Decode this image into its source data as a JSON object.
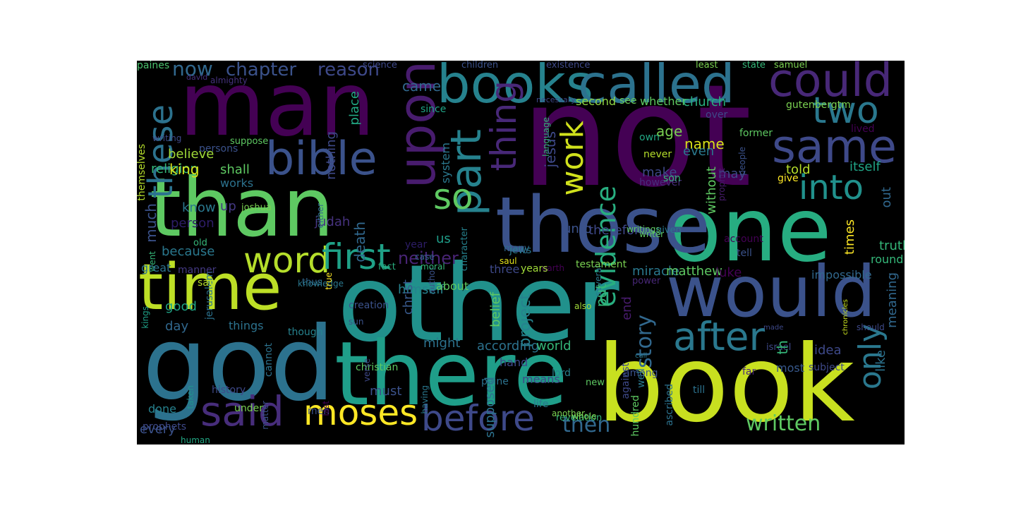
{
  "palette": {
    "background": "#000000",
    "page": "#ffffff",
    "yellow": "#c8e020",
    "lime": "#8fd744",
    "green": "#35b779",
    "teal": "#21918c",
    "blue": "#31688e",
    "indigo": "#443a83",
    "purple": "#440154"
  },
  "words": [
    {
      "t": "not",
      "c": "#440154"
    },
    {
      "t": "other",
      "c": "#21918c"
    },
    {
      "t": "there",
      "c": "#1f9e89"
    },
    {
      "t": "one",
      "c": "#27ad81"
    },
    {
      "t": "book",
      "c": "#c8e020"
    },
    {
      "t": "god",
      "c": "#2c728e"
    },
    {
      "t": "than",
      "c": "#5ec962"
    },
    {
      "t": "man",
      "c": "#440154"
    },
    {
      "t": "those",
      "c": "#3b528b"
    },
    {
      "t": "would",
      "c": "#3b528b"
    },
    {
      "t": "time",
      "c": "#bddf26"
    },
    {
      "t": "books",
      "c": "#26828e"
    },
    {
      "t": "called",
      "c": "#2c728e"
    },
    {
      "t": "upon",
      "c": "#481c6e"
    },
    {
      "t": "bible",
      "c": "#3b528b"
    },
    {
      "t": "could",
      "c": "#482878"
    },
    {
      "t": "same",
      "c": "#3e4989"
    },
    {
      "t": "into",
      "c": "#21918c"
    },
    {
      "t": "two",
      "c": "#2a788e"
    },
    {
      "t": "part",
      "c": "#26828e"
    },
    {
      "t": "thing",
      "c": "#482878"
    },
    {
      "t": "word",
      "c": "#b5de2b"
    },
    {
      "t": "first",
      "c": "#1fa187"
    },
    {
      "t": "said",
      "c": "#472d7b"
    },
    {
      "t": "moses",
      "c": "#fde725"
    },
    {
      "t": "before",
      "c": "#3e4989"
    },
    {
      "t": "after",
      "c": "#2a788e"
    },
    {
      "t": "only",
      "c": "#2a788e"
    },
    {
      "t": "so",
      "c": "#5ec962"
    },
    {
      "t": "work",
      "c": "#d0e11c"
    },
    {
      "t": "evidence",
      "c": "#28ae80"
    },
    {
      "t": "these",
      "c": "#2c728e"
    },
    {
      "t": "written",
      "c": "#5ec962"
    },
    {
      "t": "story",
      "c": "#31688e"
    },
    {
      "t": "then",
      "c": "#31688e"
    },
    {
      "t": "chapter",
      "c": "#3b528b"
    },
    {
      "t": "reason",
      "c": "#3e4989"
    },
    {
      "t": "now",
      "c": "#31688e"
    },
    {
      "t": "paines",
      "c": "#4ac16d"
    },
    {
      "t": "science",
      "c": "#3e4989"
    },
    {
      "t": "children",
      "c": "#3b528b"
    },
    {
      "t": "existence",
      "c": "#3e4989"
    },
    {
      "t": "least",
      "c": "#7ad151"
    },
    {
      "t": "state",
      "c": "#35b779"
    },
    {
      "t": "samuel",
      "c": "#7ad151"
    },
    {
      "t": "david",
      "c": "#472d7b"
    },
    {
      "t": "came",
      "c": "#31688e"
    },
    {
      "t": "since",
      "c": "#20a486"
    },
    {
      "t": "almighty",
      "c": "#46327e"
    },
    {
      "t": "necessary",
      "c": "#3e4989"
    },
    {
      "t": "second",
      "c": "#90d743"
    },
    {
      "t": "see",
      "c": "#6ccd5a"
    },
    {
      "t": "whether",
      "c": "#5ec962"
    },
    {
      "t": "church",
      "c": "#29af7f"
    },
    {
      "t": "gutenbergtm",
      "c": "#7ad151"
    },
    {
      "t": "over",
      "c": "#3e4989"
    },
    {
      "t": "themselves",
      "c": "#b5de2b"
    },
    {
      "t": "writing",
      "c": "#3e4989"
    },
    {
      "t": "persons",
      "c": "#3b528b"
    },
    {
      "t": "suppose",
      "c": "#5ec962"
    },
    {
      "t": "religion",
      "c": "#35b779"
    },
    {
      "t": "believe",
      "c": "#a0da39"
    },
    {
      "t": "nothing",
      "c": "#3e4989"
    },
    {
      "t": "place",
      "c": "#22a884"
    },
    {
      "t": "name",
      "c": "#d8e219"
    },
    {
      "t": "age",
      "c": "#7ad151"
    },
    {
      "t": "even",
      "c": "#2a788e"
    },
    {
      "t": "never",
      "c": "#b5de2b"
    },
    {
      "t": "own",
      "c": "#22a884"
    },
    {
      "t": "former",
      "c": "#5ec962"
    },
    {
      "t": "lived",
      "c": "#440154"
    },
    {
      "t": "may",
      "c": "#3e4989"
    },
    {
      "t": "make",
      "c": "#3e4989"
    },
    {
      "t": "however",
      "c": "#472d7b"
    },
    {
      "t": "language",
      "c": "#35b779"
    },
    {
      "t": "prophet",
      "c": "#481c6e"
    },
    {
      "t": "people",
      "c": "#3b528b"
    },
    {
      "t": "king",
      "c": "#d8e219"
    },
    {
      "t": "shall",
      "c": "#5ec962"
    },
    {
      "t": "works",
      "c": "#2c728e"
    },
    {
      "t": "system",
      "c": "#2a788e"
    },
    {
      "t": "told",
      "c": "#b5de2b"
    },
    {
      "t": "itself",
      "c": "#20a486"
    },
    {
      "t": "without",
      "c": "#5ec962"
    },
    {
      "t": "jesus",
      "c": "#3e4989"
    },
    {
      "t": "son",
      "c": "#35b779"
    },
    {
      "t": "give",
      "c": "#fde725"
    },
    {
      "t": "out",
      "c": "#31688e"
    },
    {
      "t": "know",
      "c": "#2a788e"
    },
    {
      "t": "up",
      "c": "#443983"
    },
    {
      "t": "unto",
      "c": "#3b528b"
    },
    {
      "t": "therefore",
      "c": "#3e4989"
    },
    {
      "t": "character",
      "c": "#26828e"
    },
    {
      "t": "many",
      "c": "#31688e"
    },
    {
      "t": "earth",
      "c": "#440154"
    },
    {
      "t": "writings",
      "c": "#5ec962"
    },
    {
      "t": "jerusalem",
      "c": "#2c728e"
    },
    {
      "t": "joshua",
      "c": "#7ad151"
    },
    {
      "t": "much",
      "c": "#3b528b"
    },
    {
      "t": "person",
      "c": "#2d1d67"
    },
    {
      "t": "judah",
      "c": "#46327e"
    },
    {
      "t": "either",
      "c": "#31688e"
    },
    {
      "t": "old",
      "c": "#35b779"
    },
    {
      "t": "thus",
      "c": "#31688e"
    },
    {
      "t": "fact",
      "c": "#29af7f"
    },
    {
      "t": "author",
      "c": "#3b528b"
    },
    {
      "t": "saul",
      "c": "#e5e419"
    },
    {
      "t": "jews",
      "c": "#2a788e"
    },
    {
      "t": "several",
      "c": "#2a788e"
    },
    {
      "t": "account",
      "c": "#440154"
    },
    {
      "t": "given",
      "c": "#2a788e"
    },
    {
      "t": "writer",
      "c": "#5ec962"
    },
    {
      "t": "because",
      "c": "#2a788e"
    },
    {
      "t": "death",
      "c": "#31688e"
    },
    {
      "t": "us",
      "c": "#1f9e89"
    },
    {
      "t": "times",
      "c": "#fde725"
    },
    {
      "t": "truth",
      "c": "#35b779"
    },
    {
      "t": "neither",
      "c": "#482475"
    },
    {
      "t": "went",
      "c": "#35b779"
    },
    {
      "t": "year",
      "c": "#2d1d67"
    },
    {
      "t": "case",
      "c": "#31688e"
    },
    {
      "t": "tell",
      "c": "#3b528b"
    },
    {
      "t": "round",
      "c": "#35b779"
    },
    {
      "t": "great",
      "c": "#2c728e"
    },
    {
      "t": "manner",
      "c": "#443983"
    },
    {
      "t": "moral",
      "c": "#35b779"
    },
    {
      "t": "three",
      "c": "#3e4989"
    },
    {
      "t": "years",
      "c": "#a0da39"
    },
    {
      "t": "testament",
      "c": "#7ad151"
    },
    {
      "t": "miracle",
      "c": "#2a788e"
    },
    {
      "t": "matthew",
      "c": "#5ec962"
    },
    {
      "t": "luke",
      "c": "#440154"
    },
    {
      "t": "power",
      "c": "#482878"
    },
    {
      "t": "impossible",
      "c": "#31688e"
    },
    {
      "t": "knowledge",
      "c": "#2a788e"
    },
    {
      "t": "say",
      "c": "#b5de2b"
    },
    {
      "t": "kings",
      "c": "#1fa187"
    },
    {
      "t": "true",
      "c": "#fde725"
    },
    {
      "t": "himself",
      "c": "#26828e"
    },
    {
      "t": "about",
      "c": "#5ec962"
    },
    {
      "t": "good",
      "c": "#20a486"
    },
    {
      "t": "day",
      "c": "#31688e"
    },
    {
      "t": "things",
      "c": "#2c728e"
    },
    {
      "t": "though",
      "c": "#26828e"
    },
    {
      "t": "creation",
      "c": "#3b528b"
    },
    {
      "t": "christ",
      "c": "#38598c"
    },
    {
      "t": "belief",
      "c": "#5ec962"
    },
    {
      "t": "project",
      "c": "#26828e"
    },
    {
      "t": "put",
      "c": "#35b779"
    },
    {
      "t": "end",
      "c": "#481c6e"
    },
    {
      "t": "meaning",
      "c": "#31688e"
    },
    {
      "t": "israel",
      "c": "#3e4989"
    },
    {
      "t": "chronicles",
      "c": "#c8e020"
    },
    {
      "t": "sun",
      "c": "#3b528b"
    },
    {
      "t": "also",
      "c": "#a0da39"
    },
    {
      "t": "made",
      "c": "#3e4989"
    },
    {
      "t": "should",
      "c": "#3e4989"
    },
    {
      "t": "might",
      "c": "#2c728e"
    },
    {
      "t": "according",
      "c": "#2c728e"
    },
    {
      "t": "world",
      "c": "#35b779"
    },
    {
      "t": "christian",
      "c": "#5ec962"
    },
    {
      "t": "cannot",
      "c": "#2c728e"
    },
    {
      "t": "idea",
      "c": "#3e4989"
    },
    {
      "t": "th",
      "c": "#35b779"
    },
    {
      "t": "like",
      "c": "#2c728e"
    },
    {
      "t": "hand",
      "c": "#3e4989"
    },
    {
      "t": "call",
      "c": "#2a788e"
    },
    {
      "t": "far",
      "c": "#482878"
    },
    {
      "t": "most",
      "c": "#38598c"
    },
    {
      "t": "done",
      "c": "#26828e"
    },
    {
      "t": "under",
      "c": "#7ad151"
    },
    {
      "t": "men",
      "c": "#3b528b"
    },
    {
      "t": "must",
      "c": "#3b528b"
    },
    {
      "t": "verse",
      "c": "#3e4989"
    },
    {
      "t": "supposed",
      "c": "#2c728e"
    },
    {
      "t": "means",
      "c": "#3e4989"
    },
    {
      "t": "lord",
      "c": "#26828e"
    },
    {
      "t": "new",
      "c": "#5ec962"
    },
    {
      "t": "among",
      "c": "#3b528b"
    },
    {
      "t": "well",
      "c": "#2a788e"
    },
    {
      "t": "ascribed",
      "c": "#2c728e"
    },
    {
      "t": "hundred",
      "c": "#5ec962"
    },
    {
      "t": "till",
      "c": "#2c728e"
    },
    {
      "t": "subject",
      "c": "#3e4989"
    },
    {
      "t": "prophets",
      "c": "#3e4989"
    },
    {
      "t": "taken",
      "c": "#21918c"
    },
    {
      "t": "history",
      "c": "#3e4989"
    },
    {
      "t": "matter",
      "c": "#3b528b"
    },
    {
      "t": "last",
      "c": "#440154"
    },
    {
      "t": "having",
      "c": "#2a788e"
    },
    {
      "t": "paine",
      "c": "#2c728e"
    },
    {
      "t": "life",
      "c": "#2a788e"
    },
    {
      "t": "revelation",
      "c": "#35b779"
    },
    {
      "t": "whole",
      "c": "#7ad151"
    },
    {
      "t": "another",
      "c": "#7ad151"
    },
    {
      "t": "against",
      "c": "#3e4989"
    },
    {
      "t": "every",
      "c": "#3b528b"
    },
    {
      "t": "human",
      "c": "#22a884"
    }
  ]
}
